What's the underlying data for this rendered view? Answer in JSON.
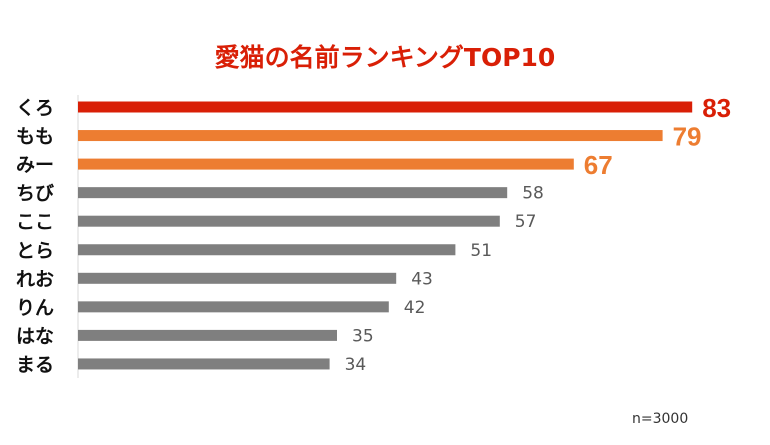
{
  "chart_data": {
    "type": "bar",
    "orientation": "horizontal",
    "title": "愛猫の名前ランキングTOP10",
    "categories": [
      "くろ",
      "もも",
      "みー",
      "ちび",
      "ここ",
      "とら",
      "れお",
      "りん",
      "はな",
      "まる"
    ],
    "values": [
      83,
      79,
      67,
      58,
      57,
      51,
      43,
      42,
      35,
      34
    ],
    "colors": [
      "#d91f06",
      "#ed7d31",
      "#ed7d31",
      "#7f7f7f",
      "#7f7f7f",
      "#7f7f7f",
      "#7f7f7f",
      "#7f7f7f",
      "#7f7f7f",
      "#7f7f7f"
    ],
    "label_colors": [
      "#d91f06",
      "#ed7d31",
      "#ed7d31",
      "#595959",
      "#595959",
      "#595959",
      "#595959",
      "#595959",
      "#595959",
      "#595959"
    ],
    "xlim": [
      0,
      100
    ],
    "grid": false,
    "note": "n=3000"
  }
}
